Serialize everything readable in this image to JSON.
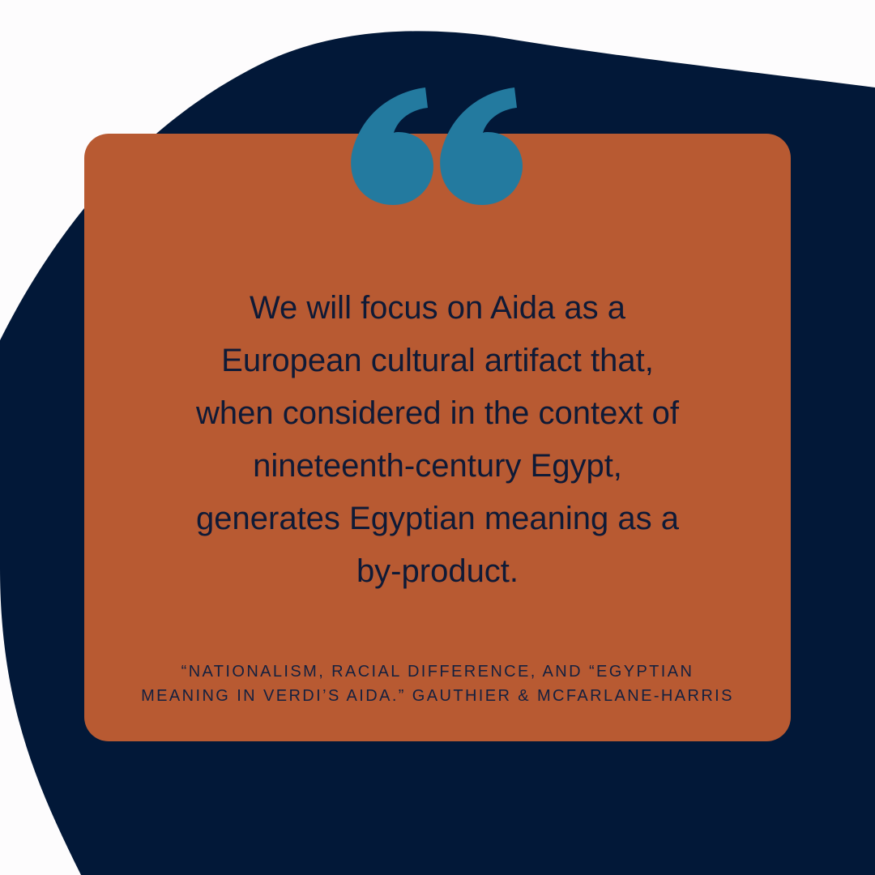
{
  "colors": {
    "background": "#fdfcfd",
    "blob": "#021838",
    "card": "#b85a32",
    "quote_mark": "#237a9f",
    "text": "#0f1a36"
  },
  "quote": {
    "icon": "opening-quotation-mark-icon",
    "lines": [
      "We will focus on Aida as a",
      "European cultural artifact that,",
      "when considered in the context of",
      "nineteenth-century Egypt,",
      "generates Egyptian meaning as a",
      "by-product."
    ]
  },
  "citation": {
    "lines": [
      "“NATIONALISM, RACIAL DIFFERENCE, AND “EGYPTIAN",
      "MEANING IN VERDI’S AIDA.” GAUTHIER & MCFARLANE-HARRIS"
    ]
  }
}
